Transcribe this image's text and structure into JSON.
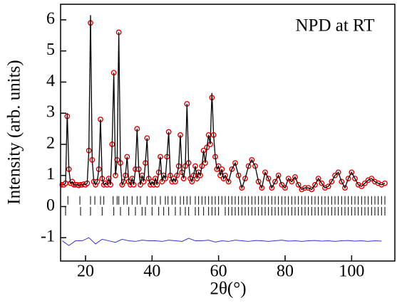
{
  "chart_data": {
    "type": "rietveld",
    "annotation": "NPD at RT",
    "xlabel": "2θ(°)",
    "ylabel": "Intensity (arb. units)",
    "xlim": [
      12.5,
      113
    ],
    "ylim": [
      -1.75,
      6.5
    ],
    "xticks": [
      20,
      40,
      60,
      80,
      100
    ],
    "yticks": [
      -1,
      0,
      1,
      2,
      3,
      4,
      5,
      6
    ],
    "observed": {
      "color": "#e00000",
      "x": [
        13,
        13.5,
        14,
        14.5,
        15,
        15.5,
        16,
        16.5,
        17,
        17.5,
        18,
        18.5,
        19,
        19.5,
        20,
        20.5,
        21,
        21.5,
        22,
        22.5,
        23,
        23.5,
        24,
        24.5,
        25,
        25.5,
        26,
        26.5,
        27,
        27.5,
        28,
        28.5,
        29,
        29.5,
        30,
        30.5,
        31,
        31.5,
        32,
        32.5,
        33,
        33.5,
        34,
        34.5,
        35,
        35.5,
        36,
        36.5,
        37,
        37.5,
        38,
        38.5,
        39,
        39.5,
        40,
        40.5,
        41,
        41.5,
        42,
        42.5,
        43,
        43.5,
        44,
        44.5,
        45,
        45.5,
        46,
        46.5,
        47,
        47.5,
        48,
        48.5,
        49,
        49.5,
        50,
        50.5,
        51,
        51.5,
        52,
        52.5,
        53,
        53.5,
        54,
        54.5,
        55,
        55.5,
        56,
        56.5,
        57,
        57.5,
        58,
        58.5,
        59,
        59.5,
        60,
        60.5,
        61,
        61.5,
        62,
        63,
        64,
        65,
        66,
        67,
        68,
        69,
        70,
        71,
        72,
        73,
        74,
        75,
        76,
        77,
        78,
        79,
        80,
        81,
        82,
        83,
        84,
        85,
        86,
        87,
        88,
        89,
        90,
        91,
        92,
        93,
        94,
        95,
        96,
        97,
        98,
        99,
        100,
        101,
        102,
        103,
        104,
        105,
        106,
        107,
        108,
        109,
        110
      ],
      "values": [
        0.7,
        0.7,
        0.75,
        2.9,
        1.2,
        0.75,
        0.8,
        0.7,
        0.7,
        0.7,
        0.68,
        0.7,
        0.7,
        0.72,
        0.7,
        0.75,
        1.8,
        5.9,
        1.5,
        0.8,
        0.7,
        0.8,
        1.2,
        2.8,
        0.9,
        0.7,
        0.75,
        0.7,
        0.9,
        0.7,
        2.0,
        4.3,
        1.0,
        1.5,
        5.6,
        1.4,
        0.7,
        0.8,
        1.0,
        1.6,
        0.8,
        0.7,
        0.9,
        0.7,
        1.2,
        2.5,
        1.2,
        0.7,
        1.0,
        0.8,
        1.4,
        2.2,
        0.9,
        0.7,
        0.8,
        0.7,
        0.9,
        0.7,
        1.1,
        1.6,
        0.8,
        1.0,
        0.9,
        1.6,
        2.4,
        1.0,
        0.8,
        0.9,
        0.8,
        1.0,
        1.3,
        2.3,
        1.1,
        0.9,
        1.3,
        3.3,
        1.4,
        0.9,
        0.8,
        1.0,
        1.3,
        0.9,
        1.1,
        1.0,
        1.3,
        1.8,
        1.4,
        1.9,
        2.3,
        2.0,
        3.5,
        2.3,
        1.6,
        1.2,
        1.3,
        1.0,
        1.2,
        0.9,
        1.0,
        0.8,
        1.2,
        1.4,
        1.0,
        0.6,
        0.9,
        1.3,
        1.5,
        1.3,
        0.8,
        0.6,
        1.1,
        0.9,
        0.6,
        0.8,
        1.0,
        0.7,
        0.6,
        0.9,
        0.8,
        0.95,
        0.7,
        0.55,
        0.6,
        0.6,
        0.55,
        0.7,
        0.9,
        0.75,
        0.6,
        0.65,
        0.8,
        1.0,
        1.1,
        0.8,
        0.6,
        0.9,
        1.1,
        0.9,
        0.7,
        0.65,
        0.75,
        0.85,
        0.9,
        0.8,
        0.75,
        0.7,
        0.75
      ]
    },
    "calculated": {
      "color": "#000000",
      "values": [
        0.7,
        0.7,
        0.75,
        3.0,
        1.2,
        0.75,
        0.8,
        0.7,
        0.7,
        0.7,
        0.68,
        0.7,
        0.7,
        0.72,
        0.7,
        0.75,
        1.8,
        6.15,
        1.5,
        0.8,
        0.7,
        0.8,
        1.2,
        2.8,
        0.9,
        0.7,
        0.75,
        0.7,
        0.9,
        0.7,
        2.0,
        4.3,
        1.0,
        1.5,
        5.6,
        1.4,
        0.7,
        0.8,
        1.0,
        1.6,
        0.8,
        0.7,
        0.9,
        0.7,
        1.2,
        2.5,
        1.2,
        0.7,
        1.0,
        0.8,
        1.4,
        2.2,
        0.9,
        0.7,
        0.8,
        0.7,
        0.9,
        0.7,
        1.1,
        1.6,
        0.8,
        1.0,
        0.9,
        1.6,
        2.4,
        1.0,
        0.8,
        0.9,
        0.8,
        1.0,
        1.3,
        2.3,
        1.1,
        0.9,
        1.3,
        3.3,
        1.4,
        0.9,
        0.8,
        1.0,
        1.3,
        0.9,
        1.1,
        1.0,
        1.3,
        1.8,
        1.4,
        1.9,
        2.3,
        2.0,
        3.65,
        2.3,
        1.6,
        1.2,
        1.3,
        1.0,
        1.2,
        0.9,
        1.0,
        0.8,
        1.2,
        1.4,
        1.0,
        0.6,
        0.9,
        1.3,
        1.5,
        1.3,
        0.8,
        0.6,
        1.1,
        0.9,
        0.6,
        0.8,
        1.0,
        0.7,
        0.6,
        0.9,
        0.8,
        0.95,
        0.7,
        0.55,
        0.6,
        0.6,
        0.55,
        0.7,
        0.9,
        0.75,
        0.6,
        0.65,
        0.8,
        1.0,
        1.1,
        0.8,
        0.6,
        0.9,
        1.1,
        0.9,
        0.7,
        0.65,
        0.75,
        0.85,
        0.9,
        0.8,
        0.75,
        0.7,
        0.75
      ]
    },
    "difference": {
      "color": "#3333cc",
      "x": [
        13,
        15,
        17,
        19,
        21,
        23,
        25,
        27,
        29,
        31,
        33,
        35,
        37,
        39,
        41,
        43,
        45,
        47,
        49,
        51,
        53,
        55,
        57,
        59,
        61,
        63,
        65,
        67,
        69,
        71,
        73,
        75,
        77,
        79,
        81,
        83,
        85,
        87,
        89,
        91,
        93,
        95,
        97,
        99,
        101,
        103,
        105,
        107,
        109
      ],
      "values": [
        -1.1,
        -1.25,
        -1.1,
        -1.1,
        -1.0,
        -1.2,
        -1.05,
        -1.1,
        -1.15,
        -1.05,
        -1.1,
        -1.12,
        -1.08,
        -1.1,
        -1.1,
        -1.12,
        -1.08,
        -1.1,
        -1.12,
        -1.02,
        -1.1,
        -1.1,
        -1.08,
        -1.14,
        -1.1,
        -1.12,
        -1.08,
        -1.1,
        -1.12,
        -1.09,
        -1.1,
        -1.12,
        -1.1,
        -1.08,
        -1.11,
        -1.1,
        -1.12,
        -1.1,
        -1.09,
        -1.11,
        -1.1,
        -1.12,
        -1.1,
        -1.09,
        -1.11,
        -1.1,
        -1.12,
        -1.1,
        -1.11
      ]
    },
    "bragg": [
      {
        "color": "#000000",
        "y": 0.2,
        "positions": [
          14.7,
          18.3,
          21.5,
          22.8,
          24.5,
          25.5,
          28.3,
          29.5,
          30,
          31.5,
          32.5,
          34,
          35.5,
          36.5,
          38.5,
          40,
          41,
          42.5,
          44,
          44.8,
          46,
          47,
          48.5,
          49.5,
          50.5,
          51.5,
          53,
          54,
          55,
          56,
          57,
          58,
          59,
          60,
          61,
          62,
          63,
          64,
          65,
          66,
          67,
          68,
          69,
          70,
          71,
          72,
          73,
          74,
          75,
          76,
          77,
          78,
          79,
          80,
          81,
          82,
          83,
          84,
          85,
          86,
          87,
          88,
          89,
          90,
          91,
          92,
          93,
          94,
          95,
          96,
          97,
          98,
          99,
          100,
          101,
          102,
          103,
          104,
          105,
          106,
          107,
          108,
          109,
          110
        ]
      },
      {
        "color": "#000000",
        "y": -0.15,
        "positions": [
          14,
          18.5,
          21.5,
          25,
          28.5,
          30.5,
          33,
          35,
          37,
          38,
          40,
          42,
          43.5,
          45,
          47,
          48.5,
          50,
          51,
          53,
          54,
          55.5,
          57,
          58,
          59,
          60,
          62,
          63,
          64,
          65,
          66,
          67,
          68,
          69,
          70,
          71,
          72,
          73,
          74,
          75,
          76,
          77,
          78,
          79,
          80,
          81,
          82,
          83,
          84,
          85,
          86,
          87,
          88,
          89,
          90,
          91,
          92,
          93,
          94,
          95,
          96,
          97,
          98,
          99,
          100,
          101,
          102,
          103,
          104,
          105,
          106,
          107,
          108,
          109,
          110
        ]
      }
    ]
  }
}
